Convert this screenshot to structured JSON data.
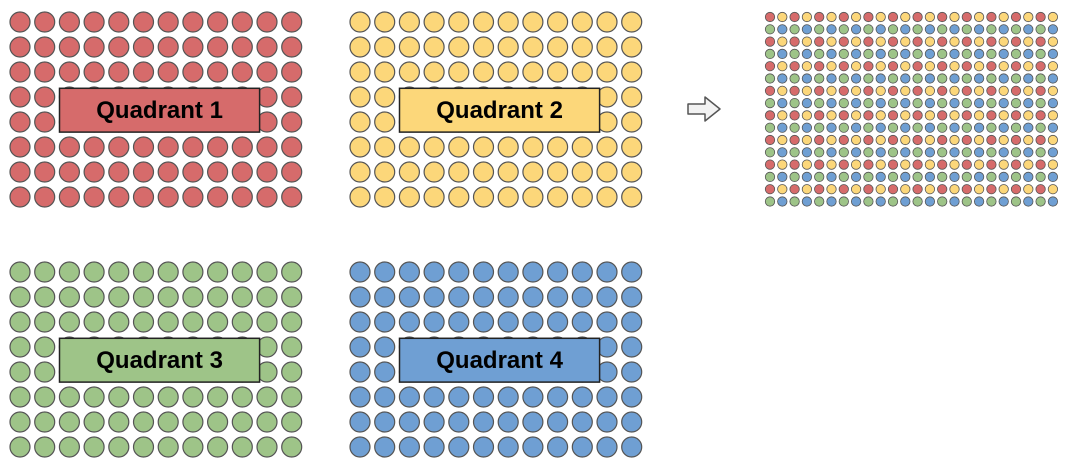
{
  "quadrants": [
    {
      "id": "1",
      "label": "Quadrant 1",
      "fill": "#d66b6b",
      "label_fill": "#d66b6b"
    },
    {
      "id": "2",
      "label": "Quadrant 2",
      "fill": "#fcd77a",
      "label_fill": "#fcd77a"
    },
    {
      "id": "3",
      "label": "Quadrant 3",
      "fill": "#9ec488",
      "label_fill": "#9ec488"
    },
    {
      "id": "4",
      "label": "Quadrant 4",
      "fill": "#6f9fd3",
      "label_fill": "#6f9fd3"
    }
  ],
  "grid": {
    "rows": 8,
    "cols": 12
  },
  "merged": {
    "rows": 16,
    "cols": 24,
    "pattern": "interleaved"
  },
  "arrow": {
    "icon": "right-arrow-icon"
  },
  "colors": {
    "dot_stroke": "#555555",
    "label_stroke": "#222222"
  }
}
